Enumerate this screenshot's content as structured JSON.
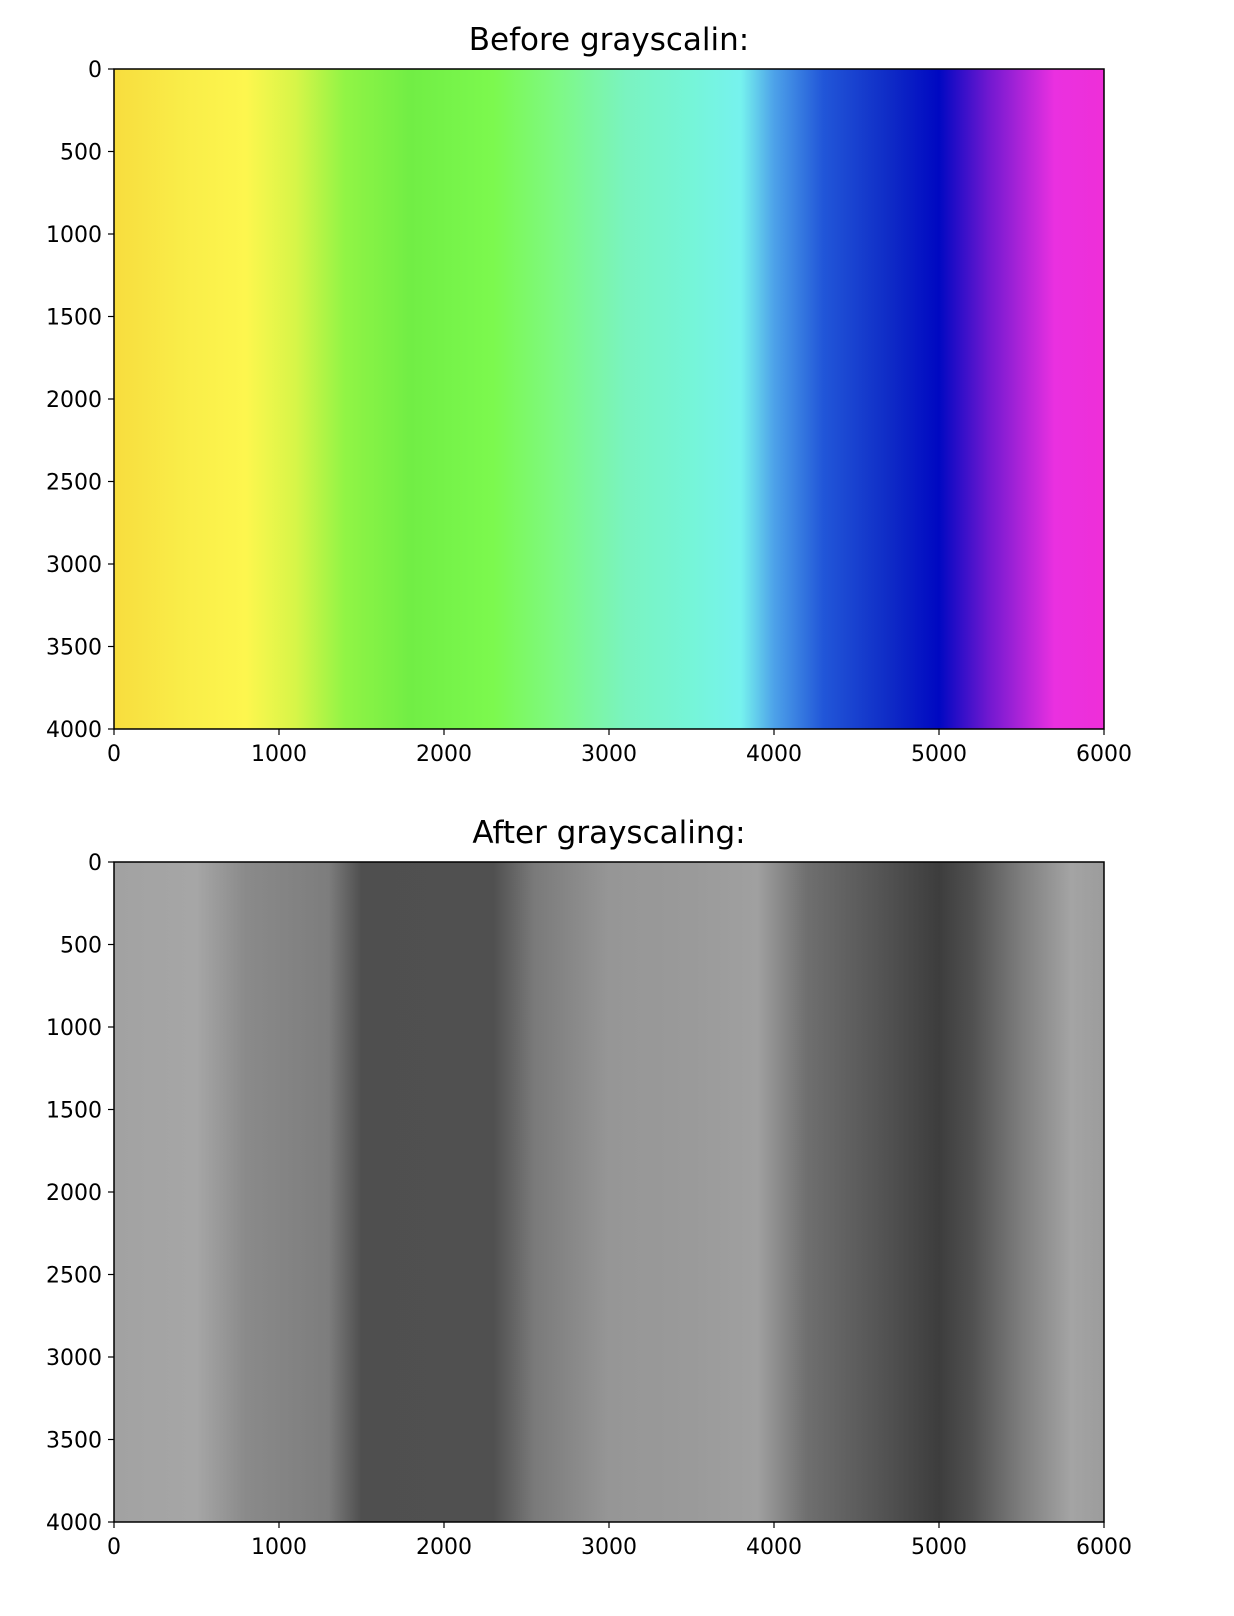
{
  "chart_data": [
    {
      "type": "heatmap",
      "title": "Before grayscalin:",
      "xlim": [
        0,
        6000
      ],
      "ylim": [
        4000,
        0
      ],
      "xticks": [
        0,
        1000,
        2000,
        3000,
        4000,
        5000,
        6000
      ],
      "yticks": [
        0,
        500,
        1000,
        1500,
        2000,
        2500,
        3000,
        3500,
        4000
      ],
      "colormap": "color",
      "color_bands": [
        {
          "x": 0,
          "color": "#f8dd3e"
        },
        {
          "x": 400,
          "color": "#f9ec48"
        },
        {
          "x": 800,
          "color": "#fdf64e"
        },
        {
          "x": 1100,
          "color": "#d7f548"
        },
        {
          "x": 1400,
          "color": "#91f445"
        },
        {
          "x": 1800,
          "color": "#71ee45"
        },
        {
          "x": 2300,
          "color": "#7cf94e"
        },
        {
          "x": 2700,
          "color": "#7ef986"
        },
        {
          "x": 3100,
          "color": "#7af3c0"
        },
        {
          "x": 3500,
          "color": "#76f5d8"
        },
        {
          "x": 3800,
          "color": "#76f2ee"
        },
        {
          "x": 4000,
          "color": "#4da2e9"
        },
        {
          "x": 4300,
          "color": "#2156d8"
        },
        {
          "x": 4700,
          "color": "#0f2bc6"
        },
        {
          "x": 5000,
          "color": "#0008c2"
        },
        {
          "x": 5300,
          "color": "#7018d0"
        },
        {
          "x": 5700,
          "color": "#ea30e0"
        },
        {
          "x": 6000,
          "color": "#ee2fd8"
        }
      ]
    },
    {
      "type": "heatmap",
      "title": "After grayscaling:",
      "xlim": [
        0,
        6000
      ],
      "ylim": [
        4000,
        0
      ],
      "xticks": [
        0,
        1000,
        2000,
        3000,
        4000,
        5000,
        6000
      ],
      "yticks": [
        0,
        500,
        1000,
        1500,
        2000,
        2500,
        3000,
        3500,
        4000
      ],
      "colormap": "gray",
      "color_bands": [
        {
          "x": 0,
          "color": "#a2a2a2"
        },
        {
          "x": 500,
          "color": "#a6a6a6"
        },
        {
          "x": 800,
          "color": "#8a8a8a"
        },
        {
          "x": 1300,
          "color": "#7d7d7d"
        },
        {
          "x": 1500,
          "color": "#4f4f4f"
        },
        {
          "x": 2300,
          "color": "#505050"
        },
        {
          "x": 2550,
          "color": "#7a7a7a"
        },
        {
          "x": 3000,
          "color": "#969696"
        },
        {
          "x": 3500,
          "color": "#9a9a9a"
        },
        {
          "x": 3900,
          "color": "#a0a0a0"
        },
        {
          "x": 4200,
          "color": "#6f6f6f"
        },
        {
          "x": 4600,
          "color": "#575757"
        },
        {
          "x": 5000,
          "color": "#3d3d3d"
        },
        {
          "x": 5200,
          "color": "#505050"
        },
        {
          "x": 5500,
          "color": "#7e7e7e"
        },
        {
          "x": 5800,
          "color": "#a4a4a4"
        },
        {
          "x": 6000,
          "color": "#9c9c9c"
        }
      ]
    }
  ]
}
